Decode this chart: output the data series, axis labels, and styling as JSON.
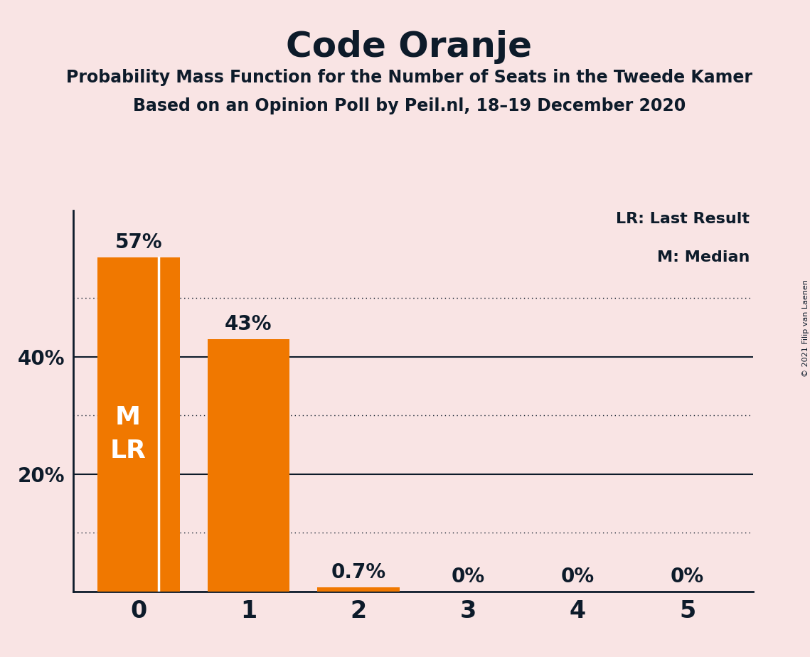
{
  "title": "Code Oranje",
  "subtitle1": "Probability Mass Function for the Number of Seats in the Tweede Kamer",
  "subtitle2": "Based on an Opinion Poll by Peil.nl, 18–19 December 2020",
  "copyright": "© 2021 Filip van Laenen",
  "categories": [
    0,
    1,
    2,
    3,
    4,
    5
  ],
  "values": [
    0.57,
    0.43,
    0.007,
    0.0,
    0.0,
    0.0
  ],
  "bar_labels": [
    "57%",
    "43%",
    "0.7%",
    "0%",
    "0%",
    "0%"
  ],
  "bar_color": "#f07800",
  "background_color": "#f9e4e4",
  "text_color": "#0d1b2a",
  "legend_lr": "LR: Last Result",
  "legend_m": "M: Median",
  "yticks_solid": [
    0.2,
    0.4
  ],
  "yticks_dotted": [
    0.1,
    0.3,
    0.5
  ],
  "ylim": [
    0,
    0.65
  ],
  "bar_width": 0.75,
  "white_line_xoffset": 0.18
}
